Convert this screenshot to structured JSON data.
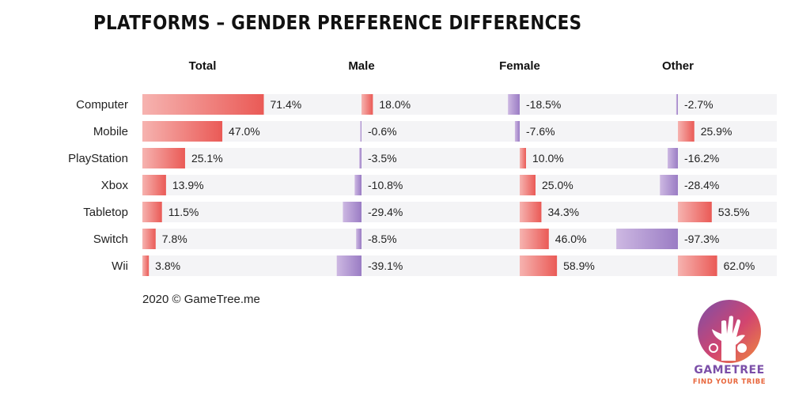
{
  "title": "PLATFORMS – GENDER PREFERENCE DIFFERENCES",
  "footer": "2020 © GameTree.me",
  "logo": {
    "word": "GAMETREE",
    "tagline": "FIND YOUR TRIBE"
  },
  "colors": {
    "positive_start": "#f6b3b0",
    "positive_end": "#ea5a56",
    "negative_start": "#cdb8e2",
    "negative_end": "#9a7cc4",
    "row_stripe": "#f4f4f6"
  },
  "chart_data": {
    "type": "bar",
    "categories": [
      "Computer",
      "Mobile",
      "PlayStation",
      "Xbox",
      "Tabletop",
      "Switch",
      "Wii"
    ],
    "series": [
      {
        "name": "Total",
        "values": [
          71.4,
          47.0,
          25.1,
          13.9,
          11.5,
          7.8,
          3.8
        ]
      },
      {
        "name": "Male",
        "values": [
          18.0,
          -0.6,
          -3.5,
          -10.8,
          -29.4,
          -8.5,
          -39.1
        ]
      },
      {
        "name": "Female",
        "values": [
          -18.5,
          -7.6,
          10.0,
          25.0,
          34.3,
          46.0,
          58.9
        ]
      },
      {
        "name": "Other",
        "values": [
          -2.7,
          25.9,
          -16.2,
          -28.4,
          53.5,
          -97.3,
          62.0
        ]
      }
    ],
    "value_labels": [
      [
        "71.4%",
        "47.0%",
        "25.1%",
        "13.9%",
        "11.5%",
        "7.8%",
        "3.8%"
      ],
      [
        "18.0%",
        "-0.6%",
        "-3.5%",
        "-10.8%",
        "-29.4%",
        "-8.5%",
        "-39.1%"
      ],
      [
        "-18.5%",
        "-7.6%",
        "10.0%",
        "25.0%",
        "34.3%",
        "46.0%",
        "58.9%"
      ],
      [
        "-2.7%",
        "25.9%",
        "-16.2%",
        "-28.4%",
        "53.5%",
        "-97.3%",
        "62.0%"
      ]
    ],
    "unit": "%",
    "legend": "none"
  }
}
